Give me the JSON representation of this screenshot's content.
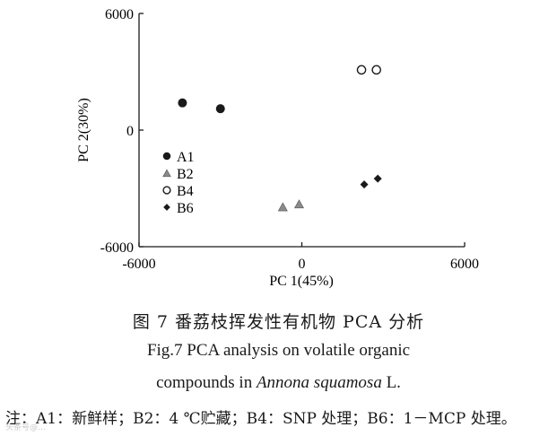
{
  "chart_data": {
    "type": "scatter",
    "xlabel": "PC 1(45%)",
    "ylabel": "PC 2(30%)",
    "xlim": [
      -6000,
      6000
    ],
    "ylim": [
      -6000,
      6000
    ],
    "xticks": [
      "-6000",
      "0",
      "6000"
    ],
    "yticks": [
      "6000",
      "0",
      "-6000"
    ],
    "xtick_values": [
      -6000,
      0,
      6000
    ],
    "ytick_values": [
      6000,
      0,
      -6000
    ],
    "grid": false,
    "legend_position": "left-middle",
    "series": [
      {
        "name": "A1",
        "marker": "filled-circle",
        "color": "#1a1a1a",
        "points": [
          [
            -4400,
            1400
          ],
          [
            -3000,
            1100
          ]
        ]
      },
      {
        "name": "B2",
        "marker": "triangle",
        "color": "#8a8a8a",
        "points": [
          [
            -700,
            -3950
          ],
          [
            -100,
            -3800
          ]
        ]
      },
      {
        "name": "B4",
        "marker": "open-circle",
        "color": "#1a1a1a",
        "points": [
          [
            2200,
            3100
          ],
          [
            2750,
            3100
          ]
        ]
      },
      {
        "name": "B6",
        "marker": "diamond",
        "color": "#1a1a1a",
        "points": [
          [
            2300,
            -2800
          ],
          [
            2800,
            -2500
          ]
        ]
      }
    ]
  },
  "caption": {
    "cn": "图 7    番荔枝挥发性有机物 PCA 分析",
    "en_line1": "Fig.7    PCA analysis on volatile organic",
    "en_line2_prefix": "compounds in ",
    "en_line2_italic": "Annona squamosa",
    "en_line2_suffix": " L."
  },
  "note": "注：A1：新鲜样；B2：4 ℃贮藏；B4：SNP 处理；B6：1－MCP 处理。",
  "watermark": "头条号@…"
}
